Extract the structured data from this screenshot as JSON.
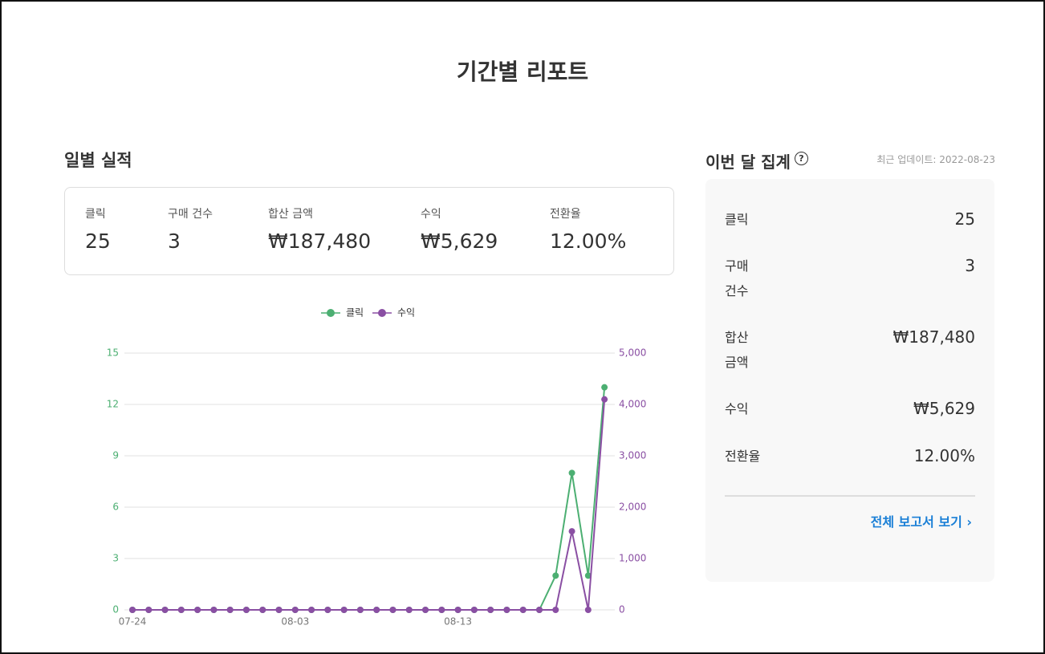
{
  "header": {
    "title": "기간별 리포트"
  },
  "daily": {
    "title": "일별 실적",
    "stats": [
      {
        "label": "클릭",
        "value": "25"
      },
      {
        "label": "구매 건수",
        "value": "3"
      },
      {
        "label": "합산 금액",
        "value": "₩187,480"
      },
      {
        "label": "수익",
        "value": "₩5,629"
      },
      {
        "label": "전환율",
        "value": "12.00%"
      }
    ]
  },
  "chart_data": {
    "type": "line",
    "categories": [
      "07-24",
      null,
      null,
      null,
      null,
      null,
      null,
      null,
      null,
      null,
      "08-03",
      null,
      null,
      null,
      null,
      null,
      null,
      null,
      null,
      null,
      "08-13",
      null,
      null,
      null,
      null,
      null,
      null,
      null,
      null,
      null
    ],
    "series": [
      {
        "name": "클릭",
        "color": "#4caf72",
        "values": [
          0,
          0,
          0,
          0,
          0,
          0,
          0,
          0,
          0,
          0,
          0,
          0,
          0,
          0,
          0,
          0,
          0,
          0,
          0,
          0,
          0,
          0,
          0,
          0,
          0,
          0,
          2,
          8,
          2,
          13
        ]
      },
      {
        "name": "수익",
        "color": "#8a4fa3",
        "axis": "y2",
        "values": [
          0,
          0,
          0,
          0,
          0,
          0,
          0,
          0,
          0,
          0,
          0,
          0,
          0,
          0,
          0,
          0,
          0,
          0,
          0,
          0,
          0,
          0,
          0,
          0,
          0,
          0,
          0,
          1530,
          0,
          4099
        ]
      }
    ],
    "ylim": [
      0,
      15
    ],
    "yticks": [
      0,
      3,
      6,
      9,
      12,
      15
    ],
    "y2lim": [
      0,
      5000
    ],
    "y2ticks": [
      0,
      {
        "value": 1000,
        "label": "1,000"
      },
      {
        "value": 2000,
        "label": "2,000"
      },
      {
        "value": 3000,
        "label": "3,000"
      },
      {
        "value": 4000,
        "label": "4,000"
      },
      {
        "value": 5000,
        "label": "5,000"
      }
    ],
    "grid": true,
    "legend": "top"
  },
  "monthly": {
    "title": "이번 달 집계",
    "updated": "최근 업데이트: 2022-08-23",
    "rows": [
      {
        "label": "클릭",
        "value": "25"
      },
      {
        "label": "구매 건수",
        "value": "3"
      },
      {
        "label": "합산 금액",
        "value": "₩187,480"
      },
      {
        "label": "수익",
        "value": "₩5,629"
      },
      {
        "label": "전환율",
        "value": "12.00%"
      }
    ],
    "link": "전체 보고서 보기"
  }
}
